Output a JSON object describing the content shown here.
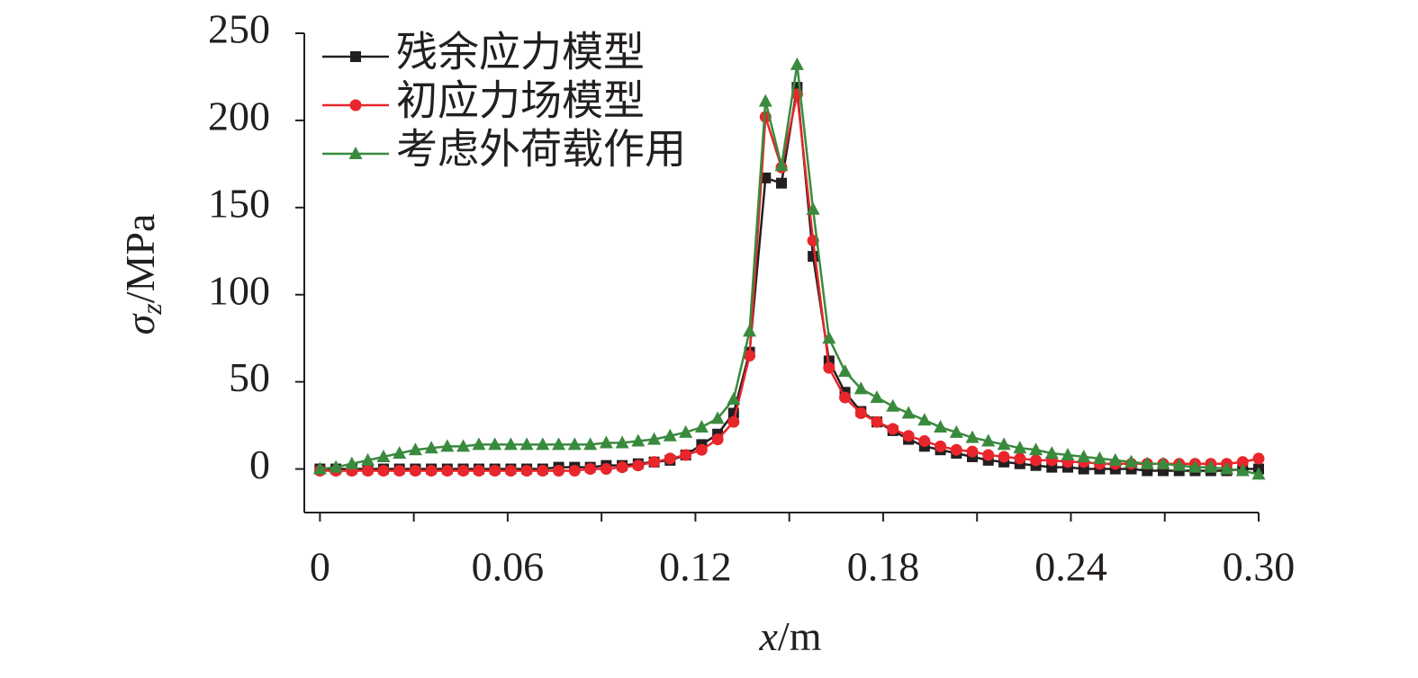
{
  "chart_data": {
    "type": "line",
    "x_label": [
      "x",
      "/m"
    ],
    "y_label": [
      "σ",
      "z",
      "/MPa"
    ],
    "x": [
      0,
      0.0051,
      0.0102,
      0.0153,
      0.0203,
      0.0254,
      0.0305,
      0.0356,
      0.0407,
      0.0458,
      0.0508,
      0.0559,
      0.061,
      0.0661,
      0.0712,
      0.0763,
      0.0814,
      0.0864,
      0.0915,
      0.0966,
      0.1017,
      0.1068,
      0.1119,
      0.1169,
      0.122,
      0.1271,
      0.1322,
      0.1373,
      0.1424,
      0.1475,
      0.1525,
      0.1576,
      0.1627,
      0.1678,
      0.1729,
      0.178,
      0.1831,
      0.1881,
      0.1932,
      0.1983,
      0.2034,
      0.2085,
      0.2136,
      0.2186,
      0.2237,
      0.2288,
      0.2339,
      0.239,
      0.2441,
      0.2492,
      0.2542,
      0.2593,
      0.2644,
      0.2695,
      0.2746,
      0.2797,
      0.2847,
      0.2898,
      0.2949,
      0.3
    ],
    "series": [
      {
        "name": "残余应力模型",
        "color": "#231f20",
        "marker": "square",
        "values": [
          0,
          0,
          0,
          0,
          0,
          0,
          0,
          0,
          0,
          0,
          0,
          0,
          0,
          0,
          0,
          1,
          1,
          1,
          2,
          2,
          3,
          4,
          5,
          8,
          14,
          20,
          32,
          67,
          167,
          164,
          219,
          122,
          62,
          44,
          33,
          27,
          22,
          17,
          13,
          11,
          9,
          7,
          5,
          4,
          3,
          2,
          1,
          1,
          0,
          0,
          0,
          0,
          -1,
          -1,
          -1,
          -1,
          -1,
          -1,
          0,
          0
        ]
      },
      {
        "name": "初应力场模型",
        "color": "#e8262b",
        "marker": "circle",
        "values": [
          -1,
          -1,
          -1,
          -1,
          -1,
          -1,
          -1,
          -1,
          -1,
          -1,
          -1,
          -1,
          -1,
          -1,
          -1,
          -1,
          -1,
          0,
          0,
          1,
          2,
          4,
          6,
          8,
          11,
          17,
          27,
          65,
          202,
          173,
          215,
          131,
          58,
          41,
          32,
          27,
          23,
          19,
          16,
          13,
          11,
          10,
          8,
          7,
          6,
          5,
          5,
          4,
          4,
          3,
          3,
          3,
          3,
          3,
          3,
          3,
          3,
          3,
          4,
          6
        ]
      },
      {
        "name": "考虑外荷载作用",
        "color": "#3a8a3e",
        "marker": "triangle",
        "values": [
          0,
          1,
          3,
          5,
          7,
          9,
          11,
          12,
          13,
          13,
          14,
          14,
          14,
          14,
          14,
          14,
          14,
          14,
          15,
          15,
          16,
          17,
          19,
          21,
          24,
          29,
          40,
          79,
          211,
          174,
          232,
          149,
          75,
          56,
          46,
          41,
          36,
          32,
          28,
          24,
          21,
          18,
          16,
          14,
          12,
          11,
          9,
          8,
          7,
          6,
          5,
          4,
          3,
          3,
          2,
          1,
          1,
          0,
          -1,
          -3
        ]
      }
    ],
    "xlim": [
      -0.005,
      0.3
    ],
    "xticks": [
      0,
      0.06,
      0.12,
      0.18,
      {
        "value": 0.24,
        "label": "0.24"
      },
      {
        "value": 0.3,
        "label": "0.30"
      }
    ],
    "x_minor_ticks": [
      0.03,
      0.09,
      0.15,
      0.21,
      0.27
    ],
    "ylim": [
      -25,
      250
    ],
    "yticks": [
      0,
      50,
      100,
      150,
      200,
      250
    ],
    "legend": "upper left",
    "grid": false
  }
}
